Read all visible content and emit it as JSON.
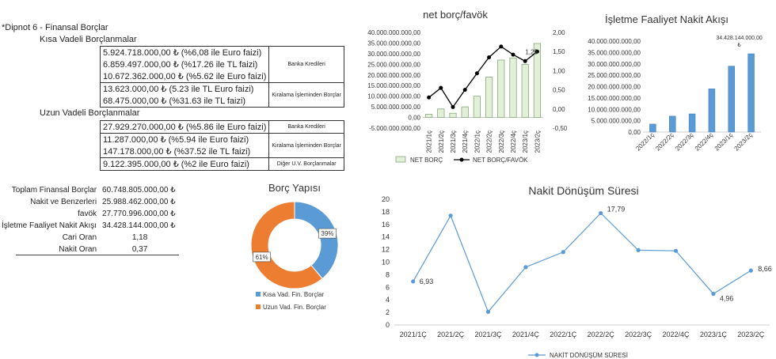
{
  "footnote": {
    "title": "*Dipnot 6 - Finansal Borçlar",
    "short_term_title": "Kısa Vadeli Borçlanmalar",
    "long_term_title": "Uzun Vadeli Borçlanmalar",
    "short_term": [
      {
        "category": "Banka Kredileri",
        "lines": [
          "5.924.718.000,00 ₺  (%6,08 ile Euro faizi)",
          "6.859.497.000,00 ₺  (%17.26 ile TL faizi)",
          "10.672.362.000,00 ₺  (%5.62 ile Euro faizi)"
        ]
      },
      {
        "category": "Kiralama İşleminden Borçlar",
        "lines": [
          "13.623.000,00 ₺  (5.23 ile TL Euro faizi)",
          "68.475.000,00 ₺  (%31.63 ile TL faizi)"
        ]
      }
    ],
    "long_term": [
      {
        "category": "Banka Kredileri",
        "lines": [
          "27.929.270.000,00 ₺  (%5.86 ile Euro faizi)"
        ]
      },
      {
        "category": "Kiralama İşleminden Borçlar",
        "lines": [
          "11.287.000,00 ₺  (%5.94 ile Euro faizi)",
          "147.178.000,00 ₺  (%37.52 ile TL faizi)"
        ]
      },
      {
        "category": "Diğer U.V. Borçlanmalar",
        "lines": [
          "9.122.395.000,00 ₺  (%2 ile Euro faizi)"
        ]
      }
    ]
  },
  "summary": [
    {
      "label": "Toplam Finansal Borçlar",
      "value": "60.748.805.000,00 ₺"
    },
    {
      "label": "Nakit ve Benzerleri",
      "value": "25.988.462.000,00 ₺"
    },
    {
      "label": "favök",
      "value": "27.770.996.000,00 ₺"
    },
    {
      "label": "İşletme Faaliyet Nakit Akışı",
      "value": "34.428.144.000,00 ₺"
    },
    {
      "label": "Cari Oran",
      "value": "1,18"
    },
    {
      "label": "Nakit Oran",
      "value": "0,37"
    }
  ],
  "chart_data": [
    {
      "id": "net-debt-ebitda",
      "type": "bar",
      "title": "net borç/favök",
      "categories": [
        "2021/1ç",
        "2021/2ç",
        "2021/3ç",
        "2021/4ç",
        "2022/1ç",
        "2022/2ç",
        "2022/3ç",
        "2022/4ç",
        "2023/1ç",
        "2023/2ç"
      ],
      "series": [
        {
          "name": "NET BORÇ",
          "kind": "bar",
          "axis": "left",
          "values": [
            1500000000,
            4000000000,
            2000000000,
            5000000000,
            10000000000,
            19000000000,
            27000000000,
            28000000000,
            25000000000,
            34800000000
          ]
        },
        {
          "name": "NET BORÇ/FAVÖK",
          "kind": "line",
          "axis": "right",
          "values": [
            0.3,
            0.55,
            0.05,
            0.5,
            0.93,
            1.35,
            1.63,
            1.42,
            1.25,
            1.5
          ]
        }
      ],
      "point_label": {
        "index": 8,
        "text": "1,25"
      },
      "ylim": [
        -5000000000,
        40000000000
      ],
      "yticks": [
        "-5.000.000.000,00",
        "0,00",
        "5.000.000.000,00",
        "10.000.000.000,00",
        "15.000.000.000,00",
        "20.000.000.000,00",
        "25.000.000.000,00",
        "30.000.000.000,00",
        "35.000.000.000,00",
        "40.000.000.000,00"
      ],
      "y2lim": [
        -0.5,
        2.0
      ],
      "y2ticks": [
        "-0,50",
        "0,00",
        "0,50",
        "1,00",
        "1,50",
        "2,00"
      ],
      "legend": [
        "NET BORÇ",
        "NET BORÇ/FAVÖK"
      ],
      "legend_position": "bottom"
    },
    {
      "id": "operating-cash-flow",
      "type": "bar",
      "title": "İşletme Faaliyet Nakit Akışı",
      "categories": [
        "2022/1ç",
        "2022/2ç",
        "2022/3ç",
        "2022/4ç",
        "2023/1ç",
        "2023/2ç"
      ],
      "values": [
        3500000000,
        7000000000,
        8000000000,
        19000000000,
        29000000000,
        34428144000
      ],
      "data_label": {
        "index": 5,
        "text": "34.428.144.000,00 ₺"
      },
      "ylim": [
        0,
        40000000000
      ],
      "yticks": [
        "0,00",
        "5.000.000.000,00",
        "10.000.000.000,00",
        "15.000.000.000,00",
        "20.000.000.000,00",
        "25.000.000.000,00",
        "30.000.000.000,00",
        "35.000.000.000,00",
        "40.000.000.000,00"
      ],
      "color": "#5b9bd5"
    },
    {
      "id": "debt-structure",
      "type": "pie",
      "subtype": "donut",
      "title": "Borç Yapısı",
      "slices": [
        {
          "name": "Kısa Vad. Fin. Borçlar",
          "value": 39,
          "label": "39%",
          "color": "#5b9bd5"
        },
        {
          "name": "Uzun Vad. Fin. Borçlar",
          "value": 61,
          "label": "61%",
          "color": "#ed7d31"
        }
      ],
      "legend_position": "bottom"
    },
    {
      "id": "cash-conversion-cycle",
      "type": "line",
      "title": "Nakit Dönüşüm Süresi",
      "categories": [
        "2021/1Ç",
        "2021/2Ç",
        "2021/3Ç",
        "2021/4Ç",
        "2022/1Ç",
        "2022/2Ç",
        "2022/3Ç",
        "2022/4Ç",
        "2023/1Ç",
        "2023/2Ç"
      ],
      "series": [
        {
          "name": "NAKİT DÖNÜŞÜM SÜRESİ",
          "values": [
            6.93,
            17.4,
            2.1,
            9.2,
            11.6,
            17.79,
            11.9,
            11.8,
            4.96,
            8.66
          ]
        }
      ],
      "point_labels": [
        {
          "index": 0,
          "text": "6,93"
        },
        {
          "index": 5,
          "text": "17,79"
        },
        {
          "index": 8,
          "text": "4,96"
        },
        {
          "index": 9,
          "text": "8,66"
        }
      ],
      "ylim": [
        0,
        20
      ],
      "yticks": [
        "0",
        "2",
        "4",
        "6",
        "8",
        "10",
        "12",
        "14",
        "16",
        "18",
        "20"
      ],
      "color": "#5b9bd5",
      "legend_position": "bottom"
    }
  ]
}
